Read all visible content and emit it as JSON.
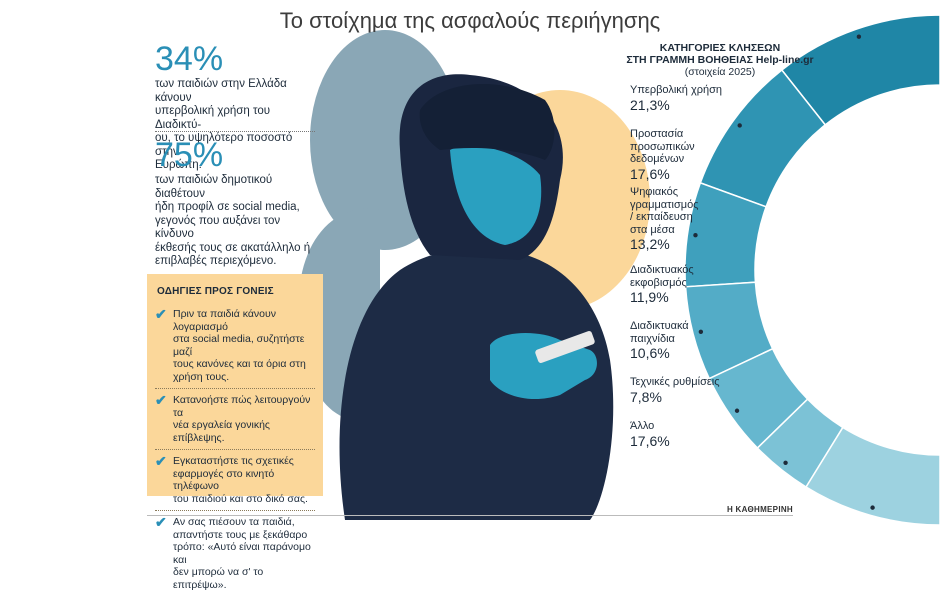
{
  "title": "Το στοίχημα της ασφαλούς περιήγησης",
  "stats": [
    {
      "value": "34%",
      "text": [
        "των παιδιών στην Ελλάδα κάνουν",
        "υπερβολική χρήση του Διαδικτύ-",
        "ου, το υψηλότερο ποσοστό στην",
        "Ευρώπη."
      ]
    },
    {
      "value": "75%",
      "text": [
        "των παιδιών δημοτικού διαθέτουν",
        "ήδη προφίλ σε social media,",
        "γεγονός που αυξάνει τον κίνδυνο",
        "έκθεσής τους σε ακατάλληλο ή",
        "επιβλαβές περιεχόμενο."
      ]
    }
  ],
  "guide": {
    "title": "ΟΔΗΓΙΕΣ ΠΡΟΣ ΓΟΝΕΙΣ",
    "items": [
      [
        "Πριν τα παιδιά κάνουν λογαριασμό",
        "στα social media, συζητήστε μαζί",
        "τους κανόνες και τα όρια στη",
        "χρήση τους."
      ],
      [
        "Κατανοήστε πώς λειτουργούν τα",
        "νέα εργαλεία γονικής επίβλεψης."
      ],
      [
        "Εγκαταστήστε τις σχετικές",
        "εφαρμογές στο κινητό τηλέφωνο",
        "του παιδιού και στο δικό σας."
      ],
      [
        "Αν σας πιέσουν τα παιδιά,",
        "απαντήστε τους με ξεκάθαρο",
        "τρόπο: «Αυτό είναι παράνομο και",
        "δεν μπορώ να σ' το επιτρέψω»."
      ]
    ]
  },
  "chart_data": {
    "type": "pie",
    "title": [
      "ΚΑΤΗΓΟΡΙΕΣ ΚΛΗΣΕΩΝ",
      "ΣΤΗ ΓΡΑΜΜΗ ΒΟΗΘΕΙΑΣ Help-line.gr"
    ],
    "subtitle": "(στοιχεία 2025)",
    "categories": [
      [
        "Υπερβολική χρήση"
      ],
      [
        "Προστασία προσωπικών",
        "δεδομένων"
      ],
      [
        "Ψηφιακός",
        "γραμματισμός",
        "/ εκπαίδευση",
        "στα μέσα"
      ],
      [
        "Διαδικτυακός",
        "εκφοβισμός"
      ],
      [
        "Διαδικτυακά",
        "παιχνίδια"
      ],
      [
        "Τεχνικές ρυθμίσεις"
      ],
      [
        "Άλλο"
      ]
    ],
    "values": [
      21.3,
      17.6,
      13.2,
      11.9,
      10.6,
      7.8,
      17.6
    ],
    "labels": [
      "21,3%",
      "17,6%",
      "13,2%",
      "11,9%",
      "10,6%",
      "7,8%",
      "17,6%"
    ],
    "colors": [
      "#1f86a6",
      "#2f94b3",
      "#3fa0bd",
      "#53acc7",
      "#66b7cf",
      "#7cc2d6",
      "#9dd2e0"
    ]
  },
  "source": "Η ΚΑΘΗΜΕΡΙΝΗ"
}
